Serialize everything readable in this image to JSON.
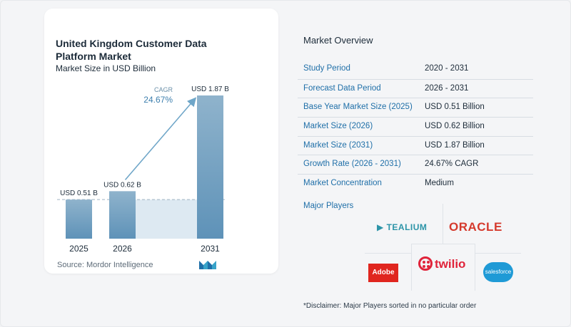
{
  "chart_data": {
    "type": "bar",
    "title": "United Kingdom Customer Data Platform Market",
    "subtitle": "Market Size in USD Billion",
    "categories": [
      "2025",
      "2026",
      "2031"
    ],
    "values": [
      0.51,
      0.62,
      1.87
    ],
    "data_labels": [
      "USD 0.51 B",
      "USD 0.62 B",
      "USD 1.87 B"
    ],
    "annotation": {
      "label": "CAGR",
      "value": "24.67%"
    },
    "grid": false,
    "colors": {
      "bar_top": "#8fb3cc",
      "bar_bottom": "#5e92b8",
      "cagr_arrow": "#6fa6c8",
      "baseline_area": "#dde9f2"
    }
  },
  "source": "Source:  Mordor Intelligence",
  "logo": {
    "icon": "mordor-intelligence-logo-icon"
  },
  "overview": {
    "title": "Market Overview",
    "rows": [
      {
        "key": "Study Period",
        "value": "2020 - 2031"
      },
      {
        "key": "Forecast Data Period",
        "value": "2026 - 2031"
      },
      {
        "key": "Base Year Market Size (2025)",
        "value": "USD 0.51 Billion"
      },
      {
        "key": "Market Size (2026)",
        "value": "USD 0.62 Billion"
      },
      {
        "key": "Market Size (2031)",
        "value": "USD 1.87 Billion"
      },
      {
        "key": "Growth Rate (2026 - 2031)",
        "value": "24.67% CAGR"
      },
      {
        "key": "Market Concentration",
        "value": "Medium"
      }
    ]
  },
  "major_players": {
    "title": "Major Players",
    "logos": [
      "TEALIUM",
      "ORACLE",
      "Adobe",
      "twilio",
      "salesforce"
    ],
    "disclaimer": "*Disclaimer: Major Players sorted in no particular order"
  }
}
